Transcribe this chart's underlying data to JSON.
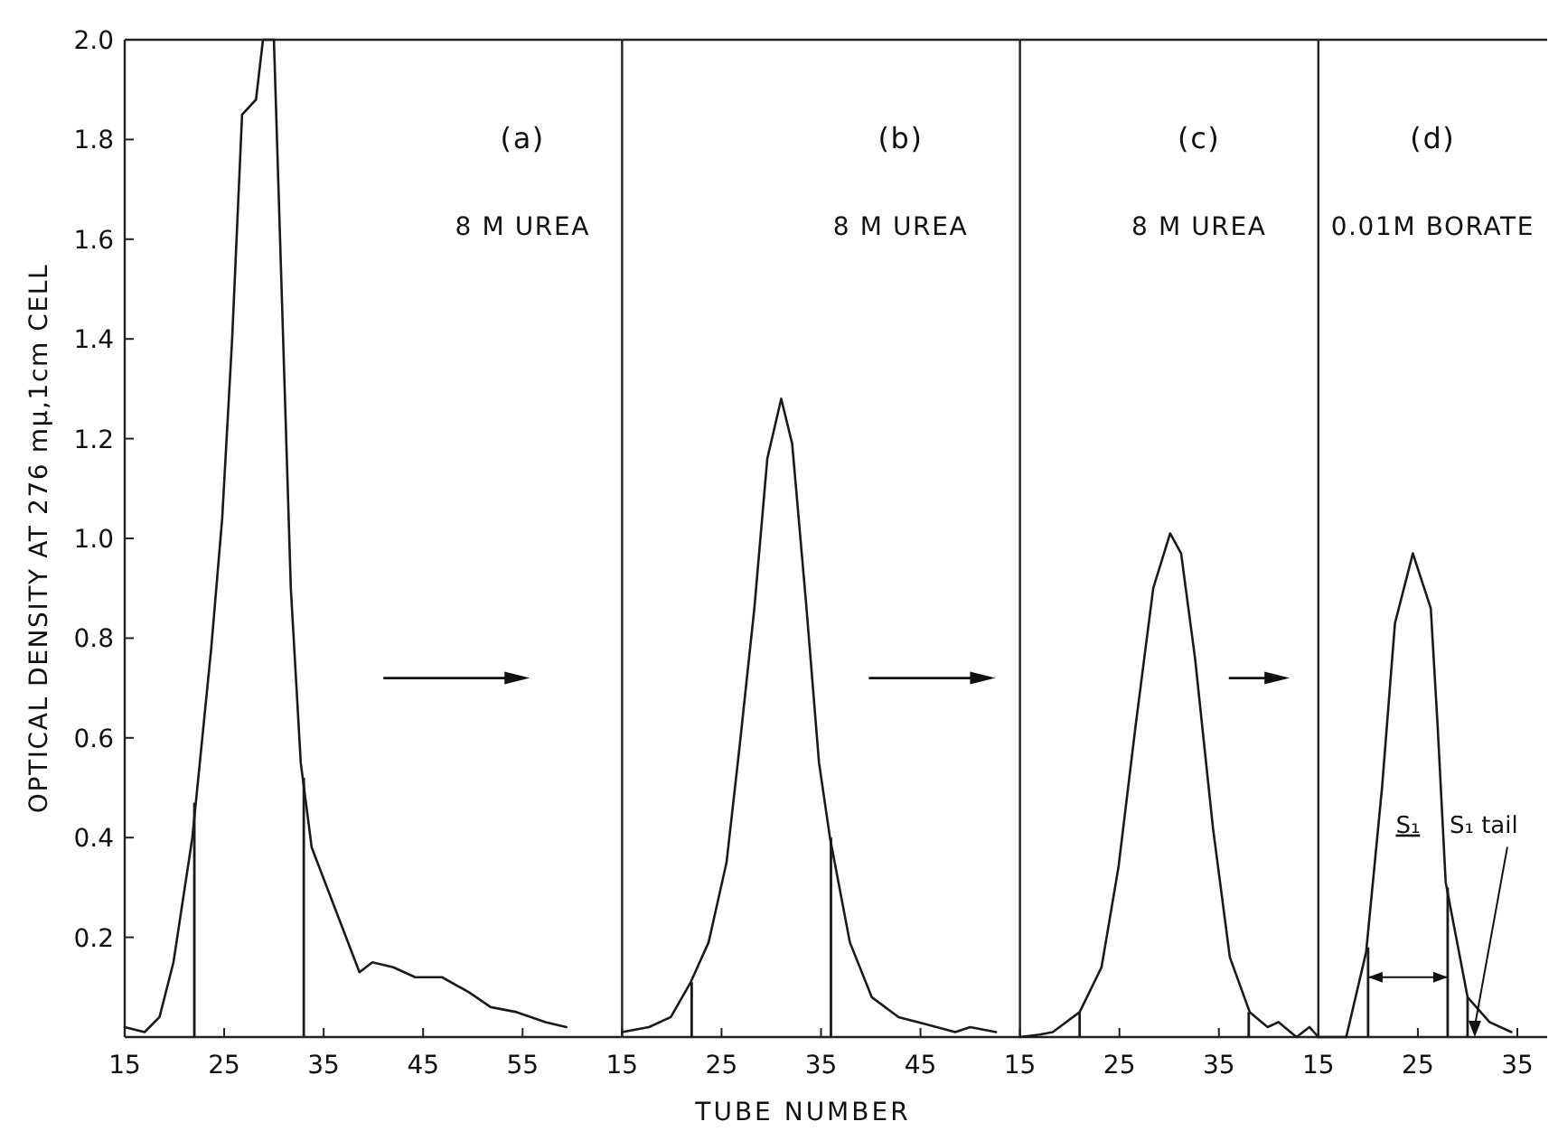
{
  "chart_data": [
    {
      "type": "line",
      "ylabel": "OPTICAL DENSITY AT 276 mμ,1cm CELL",
      "annotations": [
        "(a)",
        "8 M UREA"
      ],
      "tick_labels": "xy",
      "xlim": [
        15,
        65
      ],
      "ylim": [
        0,
        2
      ],
      "xticks": [
        15,
        25,
        35,
        45,
        55
      ],
      "yticks": [
        0.2,
        0.4,
        0.6,
        0.8,
        {
          "value": 1,
          "label": "1.0"
        },
        1.2,
        1.4,
        1.6,
        1.8,
        {
          "value": 2,
          "label": "2.0"
        }
      ],
      "marker": "none",
      "line_style": "solid",
      "series": [
        {
          "color": "#1a1a1a",
          "x": [
            15,
            17,
            18.5,
            19.9,
            21.8,
            22.7,
            23.7,
            24.8,
            25.8,
            26.8,
            28.2,
            28.9,
            30,
            31.7,
            32.7,
            33.8,
            38.6,
            39.9,
            42,
            44.2,
            46.9,
            49.6,
            51.8,
            54.4,
            57.3,
            59.4
          ],
          "values": [
            0.02,
            0.01,
            0.04,
            0.15,
            0.4,
            0.58,
            0.78,
            1.04,
            1.4,
            1.85,
            1.88,
            2.0,
            2.0,
            0.9,
            0.55,
            0.38,
            0.13,
            0.15,
            0.14,
            0.12,
            0.12,
            0.09,
            0.06,
            0.05,
            0.03,
            0.02
          ]
        },
        {
          "type": "bar",
          "color": "#1a1a1a",
          "x": [
            22,
            33
          ],
          "values": [
            0.47,
            0.52
          ]
        }
      ]
    },
    {
      "type": "line",
      "xlabel": "TUBE NUMBER",
      "annotations": [
        "(b)",
        "8 M UREA"
      ],
      "tick_labels": "x",
      "xlim": [
        15,
        55
      ],
      "ylim": [
        0,
        2
      ],
      "xticks": [
        15,
        25,
        35,
        45
      ],
      "marker": "none",
      "line_style": "solid",
      "series": [
        {
          "color": "#1a1a1a",
          "x": [
            15,
            17.7,
            19.9,
            21.9,
            23.7,
            25.5,
            26.8,
            28.3,
            29.6,
            31,
            32.1,
            33.5,
            34.8,
            35.9,
            37.9,
            40.1,
            42.8,
            45.7,
            48.5,
            50,
            52.6
          ],
          "values": [
            0.01,
            0.02,
            0.04,
            0.11,
            0.19,
            0.35,
            0.58,
            0.86,
            1.16,
            1.28,
            1.19,
            0.87,
            0.55,
            0.4,
            0.19,
            0.08,
            0.04,
            0.025,
            0.01,
            0.02,
            0.01
          ]
        },
        {
          "type": "bar",
          "color": "#1a1a1a",
          "x": [
            22,
            36
          ],
          "values": [
            0.11,
            0.4
          ]
        }
      ]
    },
    {
      "type": "line",
      "annotations": [
        "(c)",
        "8 M UREA"
      ],
      "tick_labels": "x",
      "xlim": [
        15,
        45
      ],
      "ylim": [
        0,
        2
      ],
      "xticks": [
        15,
        25,
        35
      ],
      "marker": "none",
      "line_style": "solid",
      "series": [
        {
          "color": "#1a1a1a",
          "x": [
            15,
            17,
            18.3,
            21,
            23.2,
            24.9,
            26.6,
            28.4,
            30.1,
            31.2,
            32.6,
            34.4,
            36.1,
            38.1,
            39.9,
            41,
            42.8,
            44.1,
            45
          ],
          "values": [
            0,
            0.005,
            0.01,
            0.05,
            0.14,
            0.34,
            0.62,
            0.9,
            1.01,
            0.97,
            0.76,
            0.42,
            0.16,
            0.05,
            0.02,
            0.03,
            0,
            0.02,
            0
          ]
        },
        {
          "type": "bar",
          "color": "#1a1a1a",
          "x": [
            21,
            38
          ],
          "values": [
            0.05,
            0.05
          ]
        }
      ]
    },
    {
      "type": "line",
      "annotations": [
        "(d)",
        "0.01M BORATE",
        "S₁",
        "S₁ tail"
      ],
      "tick_labels": "x",
      "xlim": [
        15,
        38
      ],
      "ylim": [
        0,
        2
      ],
      "xticks": [
        15,
        25,
        35
      ],
      "marker": "none",
      "line_style": "solid",
      "series": [
        {
          "color": "#1a1a1a",
          "x": [
            15,
            17.8,
            19.8,
            21.4,
            22.7,
            24.5,
            26.3,
            27,
            27.8,
            30,
            32.2,
            34.4
          ],
          "values": [
            0,
            0,
            0.17,
            0.5,
            0.83,
            0.97,
            0.86,
            0.62,
            0.31,
            0.08,
            0.03,
            0.01
          ]
        },
        {
          "type": "bar",
          "color": "#1a1a1a",
          "x": [
            20,
            28,
            30
          ],
          "values": [
            0.18,
            0.3,
            0.08
          ]
        }
      ]
    }
  ]
}
